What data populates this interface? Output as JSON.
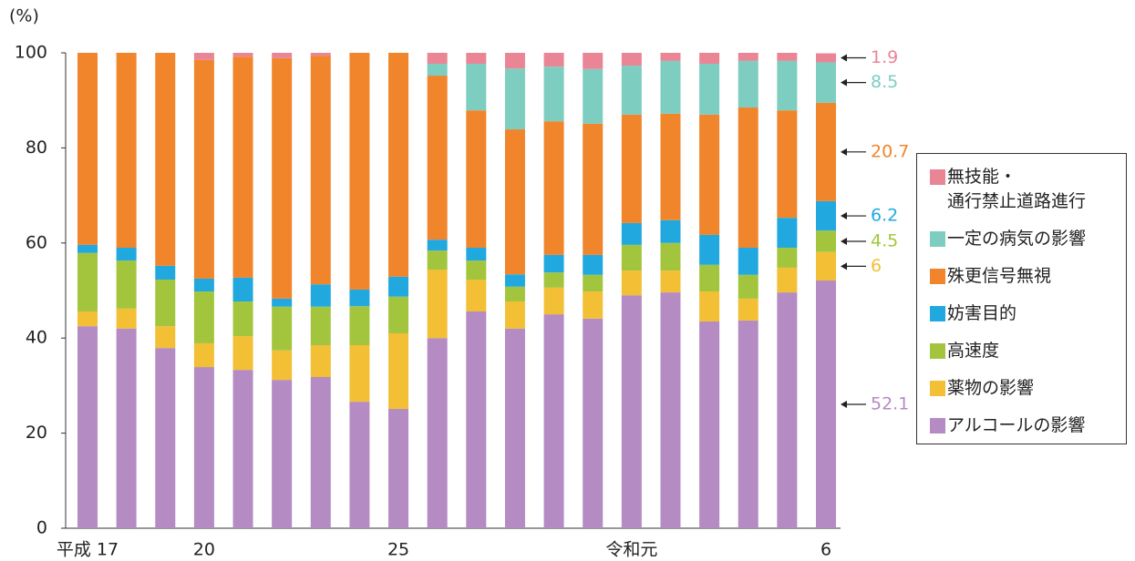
{
  "chart_data": {
    "type": "stacked_bar",
    "y_label": "(%)",
    "categories": [
      "平成 17",
      null,
      null,
      "20",
      null,
      null,
      null,
      null,
      "25",
      null,
      null,
      null,
      null,
      null,
      "令和元",
      null,
      null,
      null,
      null,
      "6"
    ],
    "ylim": [
      0,
      100
    ],
    "yticks": [
      0,
      20,
      40,
      60,
      80,
      100
    ],
    "series": [
      {
        "name": "アルコールの影響",
        "color": "#b48bc3",
        "values": [
          42.5,
          42.0,
          37.9,
          33.9,
          33.3,
          31.2,
          31.8,
          26.6,
          25.1,
          40.0,
          45.6,
          42.0,
          45.0,
          44.1,
          49.0,
          49.6,
          43.5,
          43.7,
          49.6,
          52.1
        ]
      },
      {
        "name": "薬物の影響",
        "color": "#f2bf35",
        "values": [
          3.1,
          4.2,
          4.6,
          5.0,
          7.1,
          6.2,
          6.7,
          11.9,
          15.9,
          14.4,
          6.7,
          5.7,
          5.6,
          5.7,
          5.2,
          4.6,
          6.3,
          4.6,
          5.2,
          6.0
        ]
      },
      {
        "name": "高速度",
        "color": "#a3c53e",
        "values": [
          12.3,
          10.1,
          9.8,
          10.9,
          7.3,
          9.2,
          8.1,
          8.2,
          7.7,
          4.0,
          4.0,
          3.1,
          3.2,
          3.5,
          5.4,
          5.8,
          5.6,
          5.0,
          4.2,
          4.5
        ]
      },
      {
        "name": "妨害目的",
        "color": "#21a9df",
        "values": [
          1.7,
          2.7,
          2.9,
          2.7,
          5.0,
          1.7,
          4.7,
          3.5,
          4.2,
          2.3,
          2.7,
          2.6,
          3.7,
          4.2,
          4.6,
          4.8,
          6.3,
          5.7,
          6.3,
          6.2
        ]
      },
      {
        "name": "殊更信号無視",
        "color": "#f0852c",
        "values": [
          40.4,
          41.0,
          44.8,
          46.0,
          46.5,
          50.6,
          48.1,
          49.8,
          47.1,
          34.5,
          28.9,
          30.5,
          28.1,
          27.6,
          22.8,
          22.4,
          25.3,
          29.5,
          22.6,
          20.7
        ]
      },
      {
        "name": "一定の病気の影響",
        "color": "#7dcdc0",
        "values": [
          0,
          0,
          0,
          0,
          0,
          0,
          0,
          0,
          0,
          2.5,
          9.8,
          12.8,
          11.5,
          11.5,
          10.3,
          11.1,
          10.7,
          9.8,
          10.4,
          8.5
        ]
      },
      {
        "name": "無技能・\n通行禁止道路進行",
        "color": "#ea8595",
        "values": [
          0,
          0,
          0,
          1.5,
          0.8,
          1.1,
          0.6,
          0,
          0,
          2.3,
          2.3,
          3.3,
          2.9,
          3.4,
          2.7,
          1.7,
          2.3,
          1.7,
          1.7,
          1.9
        ]
      }
    ]
  }
}
